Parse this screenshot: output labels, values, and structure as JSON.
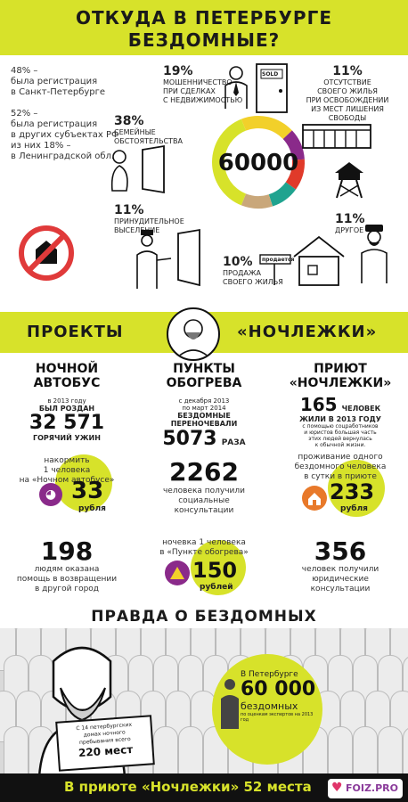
{
  "header": {
    "line1": "ОТКУДА В ПЕТЕРБУРГЕ",
    "line2": "БЕЗДОМНЫЕ?"
  },
  "registration": {
    "spb_pct": "48% –",
    "spb_text1": "была регистрация",
    "spb_text2": "в Санкт-Петербурге",
    "other_pct": "52% –",
    "other_text1": "была регистрация",
    "other_text2": "в других субъектах РФ",
    "other_text3": "из них 18% –",
    "other_text4": "в Ленинградской обл."
  },
  "donut": {
    "center": "60000",
    "segments": [
      {
        "label": "семейные обстоятельства",
        "value": 38,
        "color": "#d7e22a"
      },
      {
        "label": "мошенничество при сделках с недвижимостью",
        "value": 19,
        "color": "#f2d02a"
      },
      {
        "label": "отсутствие своего жилья при освобождении из мест лишения свободы",
        "value": 11,
        "color": "#8a2a8a"
      },
      {
        "label": "другое",
        "value": 11,
        "color": "#e03a2a"
      },
      {
        "label": "продажа своего жилья",
        "value": 10,
        "color": "#1fa38f"
      },
      {
        "label": "принудительное выселение",
        "value": 11,
        "color": "#c9a77a"
      }
    ]
  },
  "labels": {
    "fraud_pct": "19%",
    "fraud_1": "МОШЕННИЧЕСТВО",
    "fraud_2": "ПРИ СДЕЛКАХ",
    "fraud_3": "С НЕДВИЖИМОСТЬЮ",
    "prison_pct": "11%",
    "prison_1": "ОТСУТСТВИЕ",
    "prison_2": "СВОЕГО ЖИЛЬЯ",
    "prison_3": "ПРИ ОСВОБОЖДЕНИИ",
    "prison_4": "ИЗ МЕСТ ЛИШЕНИЯ",
    "prison_5": "СВОБОДЫ",
    "family_pct": "38%",
    "family_1": "СЕМЕЙНЫЕ",
    "family_2": "ОБСТОЯТЕЛЬСТВА",
    "evict_pct": "11%",
    "evict_1": "ПРИНУДИТЕЛЬНОЕ",
    "evict_2": "ВЫСЕЛЕНИЕ",
    "other_pct": "11%",
    "other_1": "ДРУГОЕ",
    "sale_pct": "10%",
    "sale_1": "ПРОДАЖА",
    "sale_2": "СВОЕГО ЖИЛЬЯ",
    "sign_sold": "SOLD",
    "sign_sale": "продается"
  },
  "projects": {
    "left": "ПРОЕКТЫ",
    "right": "«НОЧЛЕЖКИ»"
  },
  "bus": {
    "title1": "НОЧНОЙ",
    "title2": "АВТОБУС",
    "line1": "в 2013 году",
    "line2": "БЫЛ РОЗДАН",
    "big": "32 571",
    "line3": "ГОРЯЧИЙ УЖИН",
    "feed1": "накормить",
    "feed2": "1 человека",
    "feed3": "на «Ночном автобусе»",
    "price": "33",
    "price_unit": "рубля",
    "help_big": "198",
    "help1": "людям оказана",
    "help2": "помощь в возвращении",
    "help3": "в другой город"
  },
  "heat": {
    "title1": "ПУНКТЫ",
    "title2": "ОБОГРЕВА",
    "line1": "с декабря 2013",
    "line2": "по март 2014",
    "line3": "БЕЗДОМНЫЕ",
    "line4": "ПЕРЕНОЧЕВАЛИ",
    "big": "5073",
    "big_unit": "РАЗА",
    "cons_big": "2262",
    "cons1": "человека получили",
    "cons2": "социальные",
    "cons3": "консультации",
    "night1": "ночевка 1 человека",
    "night2": "в «Пункте обогрева»",
    "price": "150",
    "price_unit": "рублей"
  },
  "shelter": {
    "title1": "ПРИЮТ",
    "title2": "«НОЧЛЕЖКИ»",
    "big": "165",
    "big_unit": "ЧЕЛОВЕК",
    "line1": "ЖИЛИ В 2013 ГОДУ",
    "line2": "с помощью соцработников",
    "line3": "и юристов большая часть",
    "line4": "этих людей вернулась",
    "line5": "к обычной жизни.",
    "stay1": "проживание одного",
    "stay2": "бездомного человека",
    "stay3": "в сутки в приюте",
    "price": "233",
    "price_unit": "рубля",
    "legal_big": "356",
    "legal1": "человек получили",
    "legal2": "юридические",
    "legal3": "консультации"
  },
  "truth": {
    "title": "ПРАВДА О БЕЗДОМНЫХ",
    "spb": "В Петербурге",
    "big": "60 000",
    "homeless": "бездомных",
    "note": "по оценкам экспертов на 2013 год",
    "sign1": "С 14 петербургских",
    "sign2": "домах ночного",
    "sign3": "пребывания всего",
    "sign_big": "220 мест"
  },
  "footer": {
    "text": "В приюте «Ночлежки» 52 места",
    "logo": "FOIZ.PRO"
  }
}
